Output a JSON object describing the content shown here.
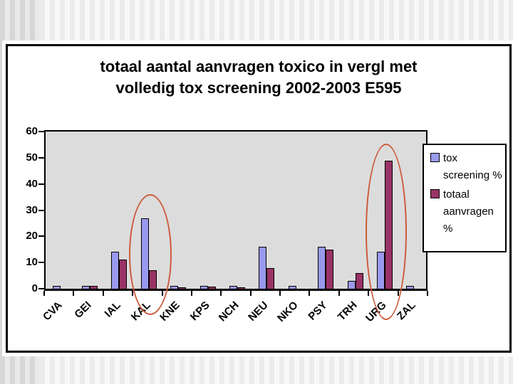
{
  "slide": {
    "title_lines": [
      "totaal aantal aanvragen toxico in vergl met",
      "volledig tox screening 2002-2003 E595"
    ]
  },
  "chart_data": {
    "type": "bar",
    "title": "totaal aantal aanvragen toxico in vergl met volledig tox screening 2002-2003 E595",
    "categories": [
      "CVA",
      "GEI",
      "IAL",
      "KAL",
      "KNE",
      "KPS",
      "NCH",
      "NEU",
      "NKO",
      "PSY",
      "TRH",
      "URG",
      "ZAL"
    ],
    "series": [
      {
        "name": "tox screening %",
        "color": "#9999ee",
        "values": [
          1,
          1,
          14,
          27,
          1,
          1,
          1,
          16,
          1,
          16,
          3,
          14,
          1
        ]
      },
      {
        "name": "totaal aanvragen %",
        "color": "#993366",
        "values": [
          0,
          1,
          11,
          7,
          0.3,
          0.7,
          0.3,
          8,
          0,
          15,
          6,
          49,
          0
        ]
      }
    ],
    "xlabel": "",
    "ylabel": "",
    "ylim": [
      0,
      60
    ],
    "yticks": [
      0,
      10,
      20,
      30,
      40,
      50,
      60
    ],
    "grid": false,
    "legend_position": "right",
    "plot_background": "#dcdcdc",
    "annotations": [
      {
        "type": "ellipse",
        "target": "KAL",
        "color": "#cc5a3c"
      },
      {
        "type": "ellipse",
        "target": "URG",
        "color": "#cc5a3c"
      }
    ]
  }
}
